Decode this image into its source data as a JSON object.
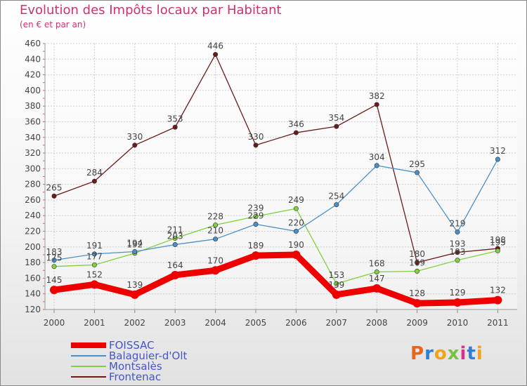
{
  "header": {
    "title": "Evolution des Impôts locaux par Habitant",
    "subtitle": "(en € et par an)"
  },
  "logo": {
    "text": "Proxiti"
  },
  "chart_data": {
    "type": "line",
    "title": "Evolution des Impôts locaux par Habitant",
    "subtitle": "(en € et par an)",
    "xlabel": "",
    "ylabel": "",
    "x": [
      2000,
      2001,
      2002,
      2003,
      2004,
      2005,
      2006,
      2007,
      2008,
      2009,
      2010,
      2011
    ],
    "yticks": [
      120,
      140,
      160,
      180,
      200,
      220,
      240,
      260,
      280,
      300,
      320,
      340,
      360,
      380,
      400,
      420,
      440,
      460
    ],
    "ylim": [
      120,
      460
    ],
    "grid": true,
    "legend_position": "bottom-left",
    "series": [
      {
        "name": "FOISSAC",
        "color": "#ee0000",
        "values": [
          145,
          152,
          139,
          164,
          170,
          189,
          190,
          139,
          147,
          128,
          129,
          132
        ],
        "labels": [
          "145",
          "152",
          "139",
          "164",
          "170",
          "189",
          "190",
          "139",
          "147",
          "128",
          "129",
          "132"
        ]
      },
      {
        "name": "Balaguier-d'Olt",
        "color": "#4a90c8",
        "values": [
          183,
          191,
          194,
          203,
          210,
          229,
          220,
          254,
          304,
          295,
          219,
          312
        ],
        "labels": [
          "183",
          "191",
          "194",
          "203",
          "210",
          "229",
          "220",
          "254",
          "304",
          "295",
          "219",
          "312"
        ]
      },
      {
        "name": "Montsalès",
        "color": "#80d040",
        "values": [
          175,
          177,
          192,
          211,
          228,
          239,
          249,
          153,
          168,
          169,
          183,
          195
        ],
        "labels": [
          "175",
          "177",
          "192",
          "211",
          "228",
          "239",
          "249",
          "153",
          "168",
          "169",
          "183",
          "195"
        ]
      },
      {
        "name": "Frontenac",
        "color": "#6b1a1a",
        "values": [
          265,
          284,
          330,
          353,
          446,
          330,
          346,
          354,
          382,
          180,
          193,
          198
        ],
        "labels": [
          "265",
          "284",
          "330",
          "353",
          "446",
          "330",
          "346",
          "354",
          "382",
          "180",
          "193",
          "198"
        ]
      }
    ]
  }
}
